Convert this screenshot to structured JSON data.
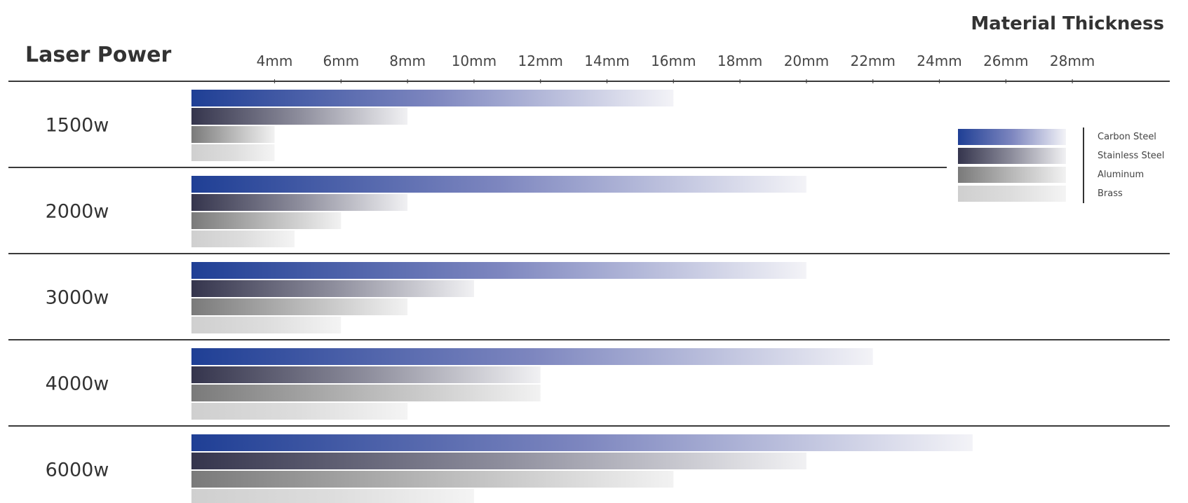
{
  "chart_data": {
    "type": "bar",
    "orientation": "horizontal",
    "title": "Material Thickness",
    "ylabel": "Laser Power",
    "xlabel": "",
    "unit": "mm",
    "x_ticks": [
      "4mm",
      "6mm",
      "8mm",
      "10mm",
      "12mm",
      "14mm",
      "16mm",
      "18mm",
      "20mm",
      "22mm",
      "24mm",
      "26mm",
      "28mm"
    ],
    "x_tick_values": [
      4,
      6,
      8,
      10,
      12,
      14,
      16,
      18,
      20,
      22,
      24,
      26,
      28
    ],
    "xlim": [
      1.5,
      28
    ],
    "categories": [
      "1500w",
      "2000w",
      "3000w",
      "4000w",
      "6000w"
    ],
    "series": [
      {
        "name": "Carbon Steel",
        "values": [
          16,
          20,
          20,
          22,
          25
        ],
        "color_start": "#1f3f95",
        "color_mid": "#7d86bf",
        "color_end": "#f3f3f7"
      },
      {
        "name": "Stainless Steel",
        "values": [
          8,
          8,
          10,
          12,
          20
        ],
        "color_start": "#35354d",
        "color_mid": "#8d8d9c",
        "color_end": "#f1f1f3"
      },
      {
        "name": "Aluminum",
        "values": [
          4,
          6,
          8,
          12,
          16
        ],
        "color_start": "#7a7a7a",
        "color_mid": "#b8b8b8",
        "color_end": "#f2f2f2"
      },
      {
        "name": "Brass",
        "values": [
          4,
          4.6,
          6,
          8,
          10
        ],
        "color_start": "#cfcfcf",
        "color_mid": "#dddddd",
        "color_end": "#f4f4f4"
      }
    ],
    "legend_position": "right",
    "grid": false
  }
}
